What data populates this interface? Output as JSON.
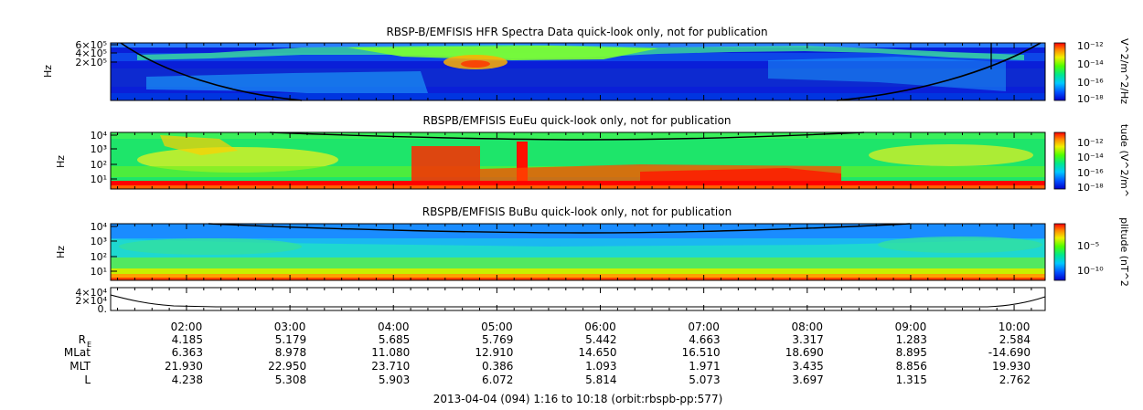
{
  "chart_data": [
    {
      "type": "heatmap",
      "title": "RBSP-B/EMFISIS  HFR Spectra Data quick-look only, not for publication",
      "ylabel": "Hz",
      "ytick_labels": [
        "6×10⁵",
        "4×10⁵",
        "2×10⁵"
      ],
      "ytick_values": [
        600000,
        400000,
        200000
      ],
      "ylim": [
        10000,
        500000
      ],
      "colorbar_label": "V^2/m^2/Hz",
      "colorbar_ticks": [
        "10⁻¹²",
        "10⁻¹⁴",
        "10⁻¹⁶",
        "10⁻¹⁸"
      ],
      "colorbar_values": [
        -12,
        -14,
        -16,
        -18
      ]
    },
    {
      "type": "heatmap",
      "title": "RBSPB/EMFISIS  EuEu quick-look only, not for publication",
      "ylabel": "Hz",
      "ytick_labels": [
        "10⁴",
        "10³",
        "10²",
        "10¹"
      ],
      "ytick_values": [
        10000,
        1000,
        100,
        10
      ],
      "colorbar_label": "tude (V^2/m^",
      "colorbar_ticks": [
        "10⁻¹²",
        "10⁻¹⁴",
        "10⁻¹⁶",
        "10⁻¹⁸"
      ],
      "colorbar_values": [
        -12,
        -14,
        -16,
        -18
      ]
    },
    {
      "type": "heatmap",
      "title": "RBSPB/EMFISIS  BuBu quick-look only, not for publication",
      "ylabel": "Hz",
      "ytick_labels": [
        "10⁴",
        "10³",
        "10²",
        "10¹"
      ],
      "ytick_values": [
        10000,
        1000,
        100,
        10
      ],
      "colorbar_label": "plitude (nT^2",
      "colorbar_ticks": [
        "10⁻⁵",
        "10⁻¹⁰"
      ],
      "colorbar_values": [
        -5,
        -10
      ]
    },
    {
      "type": "line",
      "title": "",
      "ytick_labels": [
        "4×10⁴",
        "2×10⁴",
        "0."
      ],
      "ytick_values": [
        40000,
        20000,
        0
      ],
      "ylim": [
        0,
        45000
      ]
    }
  ],
  "xaxis": {
    "tick_labels": [
      "02:00",
      "03:00",
      "04:00",
      "05:00",
      "06:00",
      "07:00",
      "08:00",
      "09:00",
      "10:00"
    ],
    "tick_hours": [
      2,
      3,
      4,
      5,
      6,
      7,
      8,
      9,
      10
    ],
    "range_hours": [
      1.2667,
      10.3
    ]
  },
  "ephemeris": {
    "rows": [
      {
        "label": "R",
        "subscript": "E",
        "values": [
          "4.185",
          "5.179",
          "5.685",
          "5.769",
          "5.442",
          "4.663",
          "3.317",
          "1.283",
          "2.584"
        ]
      },
      {
        "label": "MLat",
        "values": [
          "6.363",
          "8.978",
          "11.080",
          "12.910",
          "14.650",
          "16.510",
          "18.690",
          "8.895",
          "-14.690"
        ]
      },
      {
        "label": "MLT",
        "values": [
          "21.930",
          "22.950",
          "23.710",
          "0.386",
          "1.093",
          "1.971",
          "3.435",
          "8.856",
          "19.930"
        ]
      },
      {
        "label": "L",
        "values": [
          "4.238",
          "5.308",
          "5.903",
          "6.072",
          "5.814",
          "5.073",
          "3.697",
          "1.315",
          "2.762"
        ]
      }
    ]
  },
  "footer": "2013-04-04 (094) 1:16 to 10:18 (orbit:rbspb-pp:577)"
}
